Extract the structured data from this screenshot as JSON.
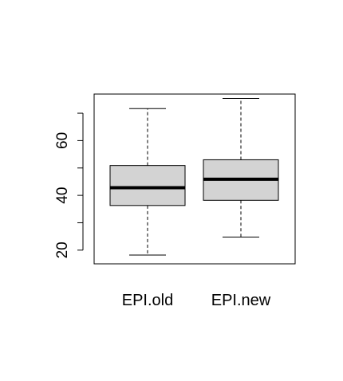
{
  "chart_data": {
    "type": "boxplot",
    "title": "",
    "xlabel": "",
    "ylabel": "",
    "ylim": [
      15,
      77
    ],
    "yticks": [
      20,
      40,
      60
    ],
    "ytick_minor": [
      20,
      30,
      40,
      50,
      60,
      70
    ],
    "categories": [
      "EPI.old",
      "EPI.new"
    ],
    "boxes": [
      {
        "label": "EPI.old",
        "whisker_low": 18.2,
        "q1": 36.3,
        "median": 42.8,
        "q3": 50.9,
        "whisker_high": 71.7
      },
      {
        "label": "EPI.new",
        "whisker_low": 24.8,
        "q1": 38.2,
        "median": 45.9,
        "q3": 53.0,
        "whisker_high": 75.4
      }
    ],
    "box_fill": "#d3d3d3",
    "grid": false,
    "legend": "none"
  }
}
